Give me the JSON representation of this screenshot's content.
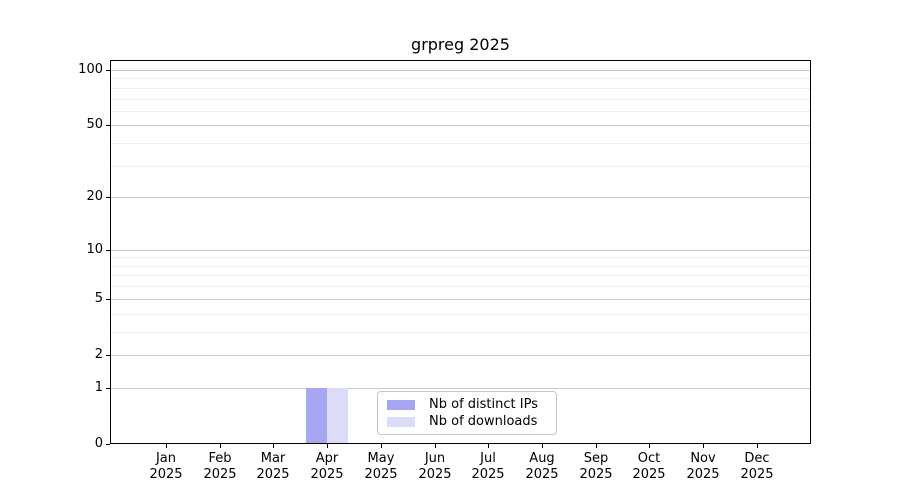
{
  "title": "grpreg 2025",
  "chart_data": {
    "type": "bar",
    "title": "grpreg 2025",
    "categories": [
      "Jan 2025",
      "Feb 2025",
      "Mar 2025",
      "Apr 2025",
      "May 2025",
      "Jun 2025",
      "Jul 2025",
      "Aug 2025",
      "Sep 2025",
      "Oct 2025",
      "Nov 2025",
      "Dec 2025"
    ],
    "series": [
      {
        "name": "Nb of distinct IPs",
        "color": "#a6a6f2",
        "values": [
          0,
          0,
          0,
          1,
          0,
          0,
          0,
          0,
          0,
          0,
          0,
          0
        ]
      },
      {
        "name": "Nb of downloads",
        "color": "#dcdcf9",
        "values": [
          0,
          0,
          0,
          1,
          0,
          0,
          0,
          0,
          0,
          0,
          0,
          0
        ]
      }
    ],
    "xlabel": "",
    "ylabel": "",
    "yscale": "log1p",
    "ylim": [
      0,
      113
    ],
    "y_major_ticks": [
      0,
      1,
      2,
      5,
      10,
      20,
      50,
      100
    ],
    "y_minor_ticks": [
      3,
      4,
      6,
      7,
      8,
      9,
      30,
      40,
      60,
      70,
      80,
      90
    ],
    "grid": "horizontal",
    "legend_position": "inside-bottom-center"
  },
  "colors": {
    "background": "#ffffff",
    "axis": "#000000",
    "grid_major": "#c9c9c9",
    "grid_minor": "#efefef",
    "legend_border": "#c7c7c7"
  }
}
